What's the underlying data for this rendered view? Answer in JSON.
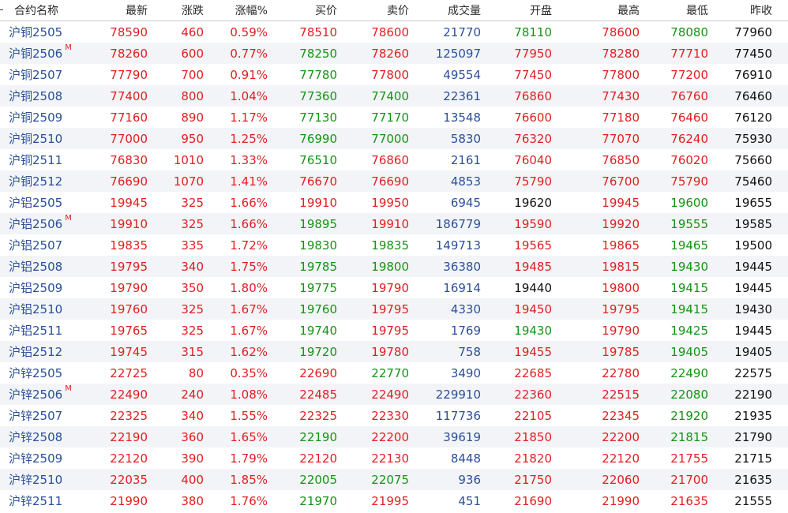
{
  "columns": [
    "合约名称",
    "最新",
    "涨跌",
    "涨幅%",
    "买价",
    "卖价",
    "成交量",
    "开盘",
    "最高",
    "最低",
    "昨收"
  ],
  "colors": {
    "up": "#e02020",
    "down": "#149414",
    "flat": "#111111",
    "name": "#2b4f9a",
    "volume": "#2b4f9a"
  },
  "rows": [
    {
      "name": "沪铜2505",
      "m": "",
      "cells": [
        [
          "78590",
          "up"
        ],
        [
          "460",
          "up"
        ],
        [
          "0.59%",
          "up"
        ],
        [
          "78510",
          "up"
        ],
        [
          "78600",
          "up"
        ],
        [
          "21770",
          "vol"
        ],
        [
          "78110",
          "down"
        ],
        [
          "78600",
          "up"
        ],
        [
          "78080",
          "down"
        ],
        [
          "77960",
          "flat"
        ]
      ]
    },
    {
      "name": "沪铜2506",
      "m": "M",
      "cells": [
        [
          "78260",
          "up"
        ],
        [
          "600",
          "up"
        ],
        [
          "0.77%",
          "up"
        ],
        [
          "78250",
          "down"
        ],
        [
          "78260",
          "up"
        ],
        [
          "125097",
          "vol"
        ],
        [
          "77950",
          "up"
        ],
        [
          "78280",
          "up"
        ],
        [
          "77710",
          "up"
        ],
        [
          "77450",
          "flat"
        ]
      ]
    },
    {
      "name": "沪铜2507",
      "m": "",
      "cells": [
        [
          "77790",
          "up"
        ],
        [
          "700",
          "up"
        ],
        [
          "0.91%",
          "up"
        ],
        [
          "77780",
          "down"
        ],
        [
          "77800",
          "up"
        ],
        [
          "49554",
          "vol"
        ],
        [
          "77450",
          "up"
        ],
        [
          "77800",
          "up"
        ],
        [
          "77200",
          "up"
        ],
        [
          "76910",
          "flat"
        ]
      ]
    },
    {
      "name": "沪铜2508",
      "m": "",
      "cells": [
        [
          "77400",
          "up"
        ],
        [
          "800",
          "up"
        ],
        [
          "1.04%",
          "up"
        ],
        [
          "77360",
          "down"
        ],
        [
          "77400",
          "down"
        ],
        [
          "22361",
          "vol"
        ],
        [
          "76860",
          "up"
        ],
        [
          "77430",
          "up"
        ],
        [
          "76760",
          "up"
        ],
        [
          "76460",
          "flat"
        ]
      ]
    },
    {
      "name": "沪铜2509",
      "m": "",
      "cells": [
        [
          "77160",
          "up"
        ],
        [
          "890",
          "up"
        ],
        [
          "1.17%",
          "up"
        ],
        [
          "77130",
          "down"
        ],
        [
          "77170",
          "down"
        ],
        [
          "13548",
          "vol"
        ],
        [
          "76600",
          "up"
        ],
        [
          "77180",
          "up"
        ],
        [
          "76460",
          "up"
        ],
        [
          "76120",
          "flat"
        ]
      ]
    },
    {
      "name": "沪铜2510",
      "m": "",
      "cells": [
        [
          "77000",
          "up"
        ],
        [
          "950",
          "up"
        ],
        [
          "1.25%",
          "up"
        ],
        [
          "76990",
          "down"
        ],
        [
          "77000",
          "down"
        ],
        [
          "5830",
          "vol"
        ],
        [
          "76320",
          "up"
        ],
        [
          "77070",
          "up"
        ],
        [
          "76240",
          "up"
        ],
        [
          "75930",
          "flat"
        ]
      ]
    },
    {
      "name": "沪铜2511",
      "m": "",
      "cells": [
        [
          "76830",
          "up"
        ],
        [
          "1010",
          "up"
        ],
        [
          "1.33%",
          "up"
        ],
        [
          "76510",
          "down"
        ],
        [
          "76860",
          "up"
        ],
        [
          "2161",
          "vol"
        ],
        [
          "76040",
          "up"
        ],
        [
          "76850",
          "up"
        ],
        [
          "76020",
          "up"
        ],
        [
          "75660",
          "flat"
        ]
      ]
    },
    {
      "name": "沪铜2512",
      "m": "",
      "cells": [
        [
          "76690",
          "up"
        ],
        [
          "1070",
          "up"
        ],
        [
          "1.41%",
          "up"
        ],
        [
          "76670",
          "up"
        ],
        [
          "76690",
          "up"
        ],
        [
          "4853",
          "vol"
        ],
        [
          "75790",
          "up"
        ],
        [
          "76700",
          "up"
        ],
        [
          "75790",
          "up"
        ],
        [
          "75460",
          "flat"
        ]
      ]
    },
    {
      "name": "沪铝2505",
      "m": "",
      "cells": [
        [
          "19945",
          "up"
        ],
        [
          "325",
          "up"
        ],
        [
          "1.66%",
          "up"
        ],
        [
          "19910",
          "up"
        ],
        [
          "19950",
          "up"
        ],
        [
          "6945",
          "vol"
        ],
        [
          "19620",
          "flat"
        ],
        [
          "19945",
          "up"
        ],
        [
          "19600",
          "down"
        ],
        [
          "19655",
          "flat"
        ]
      ]
    },
    {
      "name": "沪铝2506",
      "m": "M",
      "cells": [
        [
          "19910",
          "up"
        ],
        [
          "325",
          "up"
        ],
        [
          "1.66%",
          "up"
        ],
        [
          "19895",
          "down"
        ],
        [
          "19910",
          "up"
        ],
        [
          "186779",
          "vol"
        ],
        [
          "19590",
          "up"
        ],
        [
          "19920",
          "up"
        ],
        [
          "19555",
          "down"
        ],
        [
          "19585",
          "flat"
        ]
      ]
    },
    {
      "name": "沪铝2507",
      "m": "",
      "cells": [
        [
          "19835",
          "up"
        ],
        [
          "335",
          "up"
        ],
        [
          "1.72%",
          "up"
        ],
        [
          "19830",
          "down"
        ],
        [
          "19835",
          "down"
        ],
        [
          "149713",
          "vol"
        ],
        [
          "19565",
          "up"
        ],
        [
          "19865",
          "up"
        ],
        [
          "19465",
          "down"
        ],
        [
          "19500",
          "flat"
        ]
      ]
    },
    {
      "name": "沪铝2508",
      "m": "",
      "cells": [
        [
          "19795",
          "up"
        ],
        [
          "340",
          "up"
        ],
        [
          "1.75%",
          "up"
        ],
        [
          "19785",
          "down"
        ],
        [
          "19800",
          "down"
        ],
        [
          "36380",
          "vol"
        ],
        [
          "19485",
          "up"
        ],
        [
          "19815",
          "up"
        ],
        [
          "19430",
          "down"
        ],
        [
          "19445",
          "flat"
        ]
      ]
    },
    {
      "name": "沪铝2509",
      "m": "",
      "cells": [
        [
          "19790",
          "up"
        ],
        [
          "350",
          "up"
        ],
        [
          "1.80%",
          "up"
        ],
        [
          "19775",
          "down"
        ],
        [
          "19790",
          "up"
        ],
        [
          "16914",
          "vol"
        ],
        [
          "19440",
          "flat"
        ],
        [
          "19800",
          "up"
        ],
        [
          "19415",
          "down"
        ],
        [
          "19445",
          "flat"
        ]
      ]
    },
    {
      "name": "沪铝2510",
      "m": "",
      "cells": [
        [
          "19760",
          "up"
        ],
        [
          "325",
          "up"
        ],
        [
          "1.67%",
          "up"
        ],
        [
          "19760",
          "down"
        ],
        [
          "19795",
          "up"
        ],
        [
          "4330",
          "vol"
        ],
        [
          "19450",
          "up"
        ],
        [
          "19795",
          "up"
        ],
        [
          "19415",
          "down"
        ],
        [
          "19430",
          "flat"
        ]
      ]
    },
    {
      "name": "沪铝2511",
      "m": "",
      "cells": [
        [
          "19765",
          "up"
        ],
        [
          "325",
          "up"
        ],
        [
          "1.67%",
          "up"
        ],
        [
          "19740",
          "down"
        ],
        [
          "19795",
          "up"
        ],
        [
          "1769",
          "vol"
        ],
        [
          "19430",
          "down"
        ],
        [
          "19790",
          "up"
        ],
        [
          "19425",
          "down"
        ],
        [
          "19445",
          "flat"
        ]
      ]
    },
    {
      "name": "沪铝2512",
      "m": "",
      "cells": [
        [
          "19745",
          "up"
        ],
        [
          "315",
          "up"
        ],
        [
          "1.62%",
          "up"
        ],
        [
          "19720",
          "down"
        ],
        [
          "19780",
          "up"
        ],
        [
          "758",
          "vol"
        ],
        [
          "19455",
          "up"
        ],
        [
          "19785",
          "up"
        ],
        [
          "19405",
          "down"
        ],
        [
          "19405",
          "flat"
        ]
      ]
    },
    {
      "name": "沪锌2505",
      "m": "",
      "cells": [
        [
          "22725",
          "up"
        ],
        [
          "80",
          "up"
        ],
        [
          "0.35%",
          "up"
        ],
        [
          "22690",
          "up"
        ],
        [
          "22770",
          "down"
        ],
        [
          "3490",
          "vol"
        ],
        [
          "22685",
          "up"
        ],
        [
          "22780",
          "up"
        ],
        [
          "22490",
          "down"
        ],
        [
          "22575",
          "flat"
        ]
      ]
    },
    {
      "name": "沪锌2506",
      "m": "M",
      "cells": [
        [
          "22490",
          "up"
        ],
        [
          "240",
          "up"
        ],
        [
          "1.08%",
          "up"
        ],
        [
          "22485",
          "up"
        ],
        [
          "22490",
          "up"
        ],
        [
          "229910",
          "vol"
        ],
        [
          "22360",
          "up"
        ],
        [
          "22515",
          "up"
        ],
        [
          "22080",
          "down"
        ],
        [
          "22190",
          "flat"
        ]
      ]
    },
    {
      "name": "沪锌2507",
      "m": "",
      "cells": [
        [
          "22325",
          "up"
        ],
        [
          "340",
          "up"
        ],
        [
          "1.55%",
          "up"
        ],
        [
          "22325",
          "up"
        ],
        [
          "22330",
          "up"
        ],
        [
          "117736",
          "vol"
        ],
        [
          "22105",
          "up"
        ],
        [
          "22345",
          "up"
        ],
        [
          "21920",
          "down"
        ],
        [
          "21935",
          "flat"
        ]
      ]
    },
    {
      "name": "沪锌2508",
      "m": "",
      "cells": [
        [
          "22190",
          "up"
        ],
        [
          "360",
          "up"
        ],
        [
          "1.65%",
          "up"
        ],
        [
          "22190",
          "down"
        ],
        [
          "22200",
          "up"
        ],
        [
          "39619",
          "vol"
        ],
        [
          "21850",
          "up"
        ],
        [
          "22200",
          "up"
        ],
        [
          "21815",
          "down"
        ],
        [
          "21790",
          "flat"
        ]
      ]
    },
    {
      "name": "沪锌2509",
      "m": "",
      "cells": [
        [
          "22120",
          "up"
        ],
        [
          "390",
          "up"
        ],
        [
          "1.79%",
          "up"
        ],
        [
          "22120",
          "up"
        ],
        [
          "22130",
          "up"
        ],
        [
          "8448",
          "vol"
        ],
        [
          "21820",
          "up"
        ],
        [
          "22120",
          "up"
        ],
        [
          "21755",
          "up"
        ],
        [
          "21715",
          "flat"
        ]
      ]
    },
    {
      "name": "沪锌2510",
      "m": "",
      "cells": [
        [
          "22035",
          "up"
        ],
        [
          "400",
          "up"
        ],
        [
          "1.85%",
          "up"
        ],
        [
          "22005",
          "down"
        ],
        [
          "22075",
          "down"
        ],
        [
          "936",
          "vol"
        ],
        [
          "21750",
          "up"
        ],
        [
          "22060",
          "up"
        ],
        [
          "21700",
          "up"
        ],
        [
          "21635",
          "flat"
        ]
      ]
    },
    {
      "name": "沪锌2511",
      "m": "",
      "cells": [
        [
          "21990",
          "up"
        ],
        [
          "380",
          "up"
        ],
        [
          "1.76%",
          "up"
        ],
        [
          "21970",
          "down"
        ],
        [
          "21995",
          "up"
        ],
        [
          "451",
          "vol"
        ],
        [
          "21690",
          "up"
        ],
        [
          "21990",
          "up"
        ],
        [
          "21635",
          "up"
        ],
        [
          "21555",
          "flat"
        ]
      ]
    }
  ]
}
